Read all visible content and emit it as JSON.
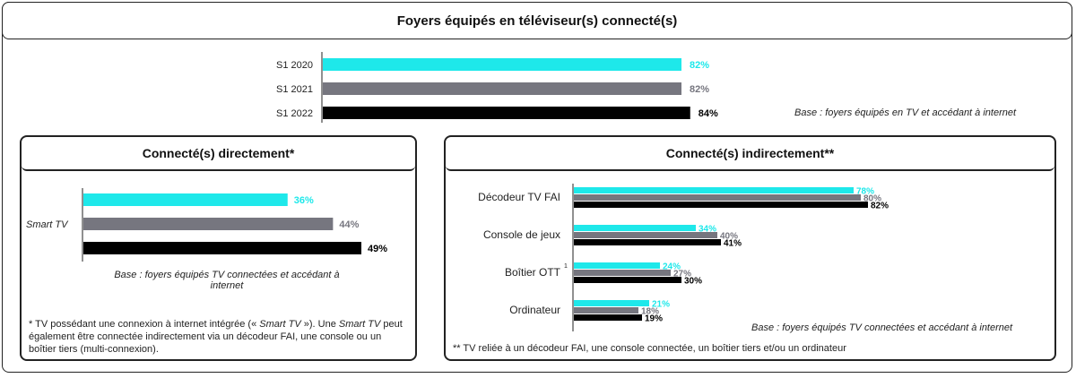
{
  "top": {
    "title": "Foyers équipés en téléviseur(s) connecté(s)",
    "base_note": "Base : foyers équipés en TV et accédant à internet"
  },
  "left_panel": {
    "title": "Connecté(s) directement*",
    "base_note": "Base : foyers équipés TV connectées et accédant à internet",
    "footnote_parts": [
      "* TV possédant une connexion à internet intégrée (« ",
      "Smart TV",
      " »). Une ",
      "Smart TV",
      " peut également être connectée indirectement via un décodeur FAI, une console ou un boîtier tiers (multi-connexion)."
    ]
  },
  "right_panel": {
    "title": "Connecté(s) indirectement**",
    "base_note": "Base : foyers équipés TV connectées et accédant à internet",
    "footnote": "** TV reliée à un décodeur FAI, une console connectée, un boîtier tiers et/ou un ordinateur"
  },
  "colors": {
    "s1_2020": "#1ee8ea",
    "s1_2021": "#76767f",
    "s1_2022": "#000000"
  },
  "chart_data": [
    {
      "type": "bar",
      "orientation": "horizontal",
      "title": "Foyers équipés en téléviseur(s) connecté(s)",
      "categories": [
        "S1 2020",
        "S1 2021",
        "S1 2022"
      ],
      "values": [
        82,
        82,
        84
      ],
      "value_labels": [
        "82%",
        "82%",
        "84%"
      ],
      "unit": "%"
    },
    {
      "type": "bar",
      "orientation": "horizontal",
      "title": "Connecté(s) directement*",
      "categories": [
        "Smart TV"
      ],
      "series": [
        {
          "name": "S1 2020",
          "values": [
            36
          ],
          "labels": [
            "36%"
          ]
        },
        {
          "name": "S1 2021",
          "values": [
            44
          ],
          "labels": [
            "44%"
          ]
        },
        {
          "name": "S1 2022",
          "values": [
            49
          ],
          "labels": [
            "49%"
          ]
        }
      ],
      "unit": "%"
    },
    {
      "type": "bar",
      "orientation": "horizontal",
      "title": "Connecté(s) indirectement**",
      "categories": [
        "Décodeur TV FAI",
        "Console de jeux",
        "Boîtier OTT",
        "Ordinateur"
      ],
      "category_superscripts": [
        "",
        "",
        "1",
        ""
      ],
      "series": [
        {
          "name": "S1 2020",
          "values": [
            78,
            34,
            24,
            21
          ],
          "labels": [
            "78%",
            "34%",
            "24%",
            "21%"
          ]
        },
        {
          "name": "S1 2021",
          "values": [
            80,
            40,
            27,
            18
          ],
          "labels": [
            "80%",
            "40%",
            "27%",
            "18%"
          ]
        },
        {
          "name": "S1 2022",
          "values": [
            82,
            41,
            30,
            19
          ],
          "labels": [
            "82%",
            "41%",
            "30%",
            "19%"
          ]
        }
      ],
      "unit": "%"
    }
  ]
}
